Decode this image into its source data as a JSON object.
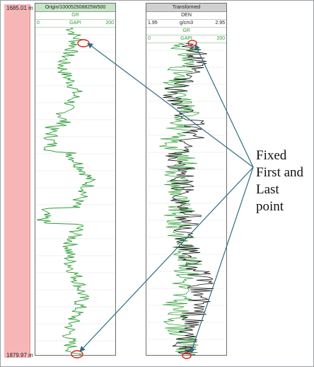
{
  "depth_track": {
    "top_depth": "1685.01 m",
    "bottom_depth": "1879.97 m"
  },
  "left_track": {
    "title": "Origin/100052508825W500",
    "curve": "GR",
    "scale_min": "0",
    "unit": "GAPI",
    "scale_max": "200"
  },
  "right_track": {
    "title": "Transformed",
    "curve1": "DEN",
    "curve1_min": "1.95",
    "curve1_unit": "g/cm3",
    "curve1_max": "2.95",
    "curve2": "GR",
    "curve2_min": "0",
    "curve2_unit": "GAPI",
    "curve2_max": "200"
  },
  "annotation": {
    "lines": [
      "Fixed",
      "First and",
      "Last",
      "point"
    ]
  },
  "colors": {
    "gr_curve": "#2e9d36",
    "den_curve": "#111111",
    "depth_fill": "#f7b6b6",
    "marker": "#e0201a",
    "arrow": "#2c6e82"
  }
}
